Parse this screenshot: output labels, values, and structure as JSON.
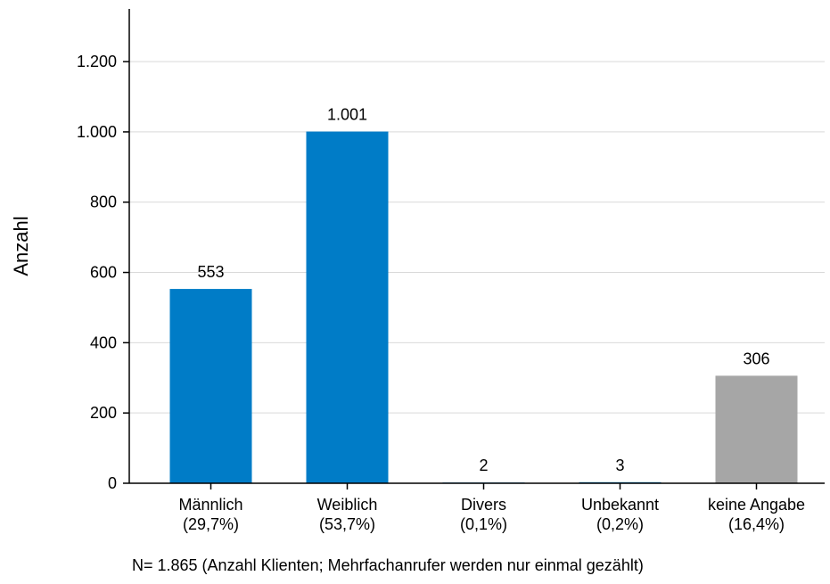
{
  "chart_data": {
    "type": "bar",
    "categories": [
      "Männlich\n(29,7%)",
      "Weiblich\n(53,7%)",
      "Divers\n(0,1%)",
      "Unbekannt\n(0,2%)",
      "keine Angabe\n(16,4%)"
    ],
    "values": [
      553,
      1001,
      2,
      3,
      306
    ],
    "value_labels": [
      "553",
      "1.001",
      "2",
      "3",
      "306"
    ],
    "bar_colors": [
      "#007cc7",
      "#007cc7",
      "#007cc7",
      "#007cc7",
      "#a6a6a6"
    ],
    "ylabel": "Anzahl",
    "xlabel": "",
    "ylim": [
      0,
      1350
    ],
    "yticks": [
      0,
      200,
      400,
      600,
      800,
      1000,
      1200
    ],
    "ytick_labels": [
      "0",
      "200",
      "400",
      "600",
      "800",
      "1.000",
      "1.200"
    ],
    "grid": true,
    "grid_color": "#d9d9d9",
    "footnote": "N=  1.865 (Anzahl Klienten; Mehrfachanrufer werden nur einmal gezählt)"
  }
}
